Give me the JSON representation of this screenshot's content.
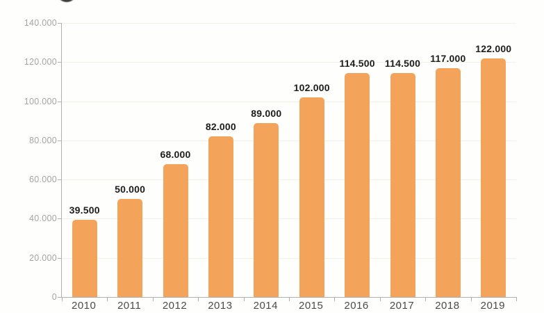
{
  "page": {
    "background": "#fefefd"
  },
  "decor": {
    "cropped_logo_circle_color": "#3c3c3c"
  },
  "chart_data": {
    "type": "bar",
    "categories": [
      "2010",
      "2011",
      "2012",
      "2013",
      "2014",
      "2015",
      "2016",
      "2017",
      "2018",
      "2019"
    ],
    "values": [
      39500,
      50000,
      68000,
      82000,
      89000,
      102000,
      114500,
      114500,
      117000,
      122000
    ],
    "value_labels": [
      "39.500",
      "50.000",
      "68.000",
      "82.000",
      "89.000",
      "102.000",
      "114.500",
      "114.500",
      "117.000",
      "122.000"
    ],
    "y_ticks": [
      0,
      20000,
      40000,
      60000,
      80000,
      100000,
      120000,
      140000
    ],
    "y_tick_labels": [
      "0",
      "20.000",
      "40.000",
      "60.000",
      "80.000",
      "100.000",
      "120.000",
      "140.000"
    ],
    "ylim": [
      0,
      140000
    ],
    "xlabel": "",
    "ylabel": "",
    "grid": "horizontal",
    "legend": false,
    "colors": {
      "bar": "#f4a45a",
      "gridline": "#f5f1e4",
      "axis": "#b0b0b0",
      "value_label": "#1d1d1d",
      "y_tick_label": "#a5a5a5",
      "x_tick_label": "#4b4b4b"
    }
  }
}
